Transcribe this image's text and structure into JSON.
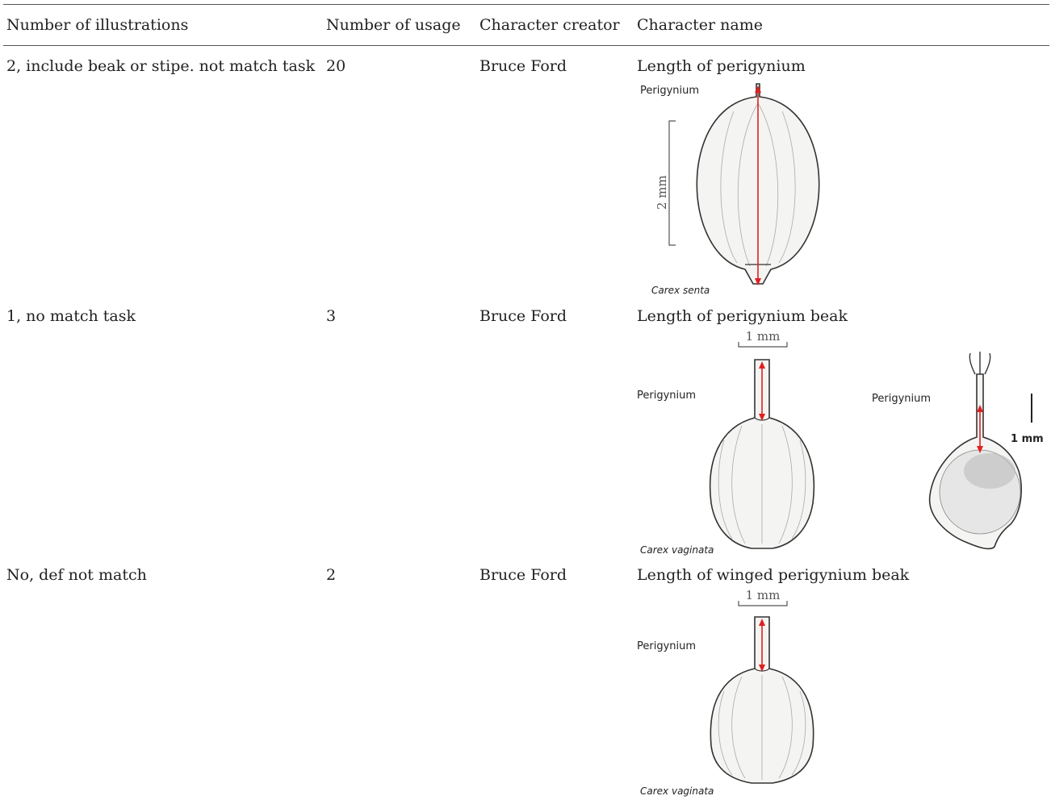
{
  "table": {
    "headers": [
      "Number of illustrations",
      "Number of usage",
      "Character creator",
      "Character name"
    ],
    "rows": [
      {
        "illustrations": "2, include beak or stipe. not match task",
        "usage": "20",
        "creator": "Bruce Ford",
        "name": "Length of perigynium",
        "figure": {
          "label": "Perigynium",
          "scale": "2 mm",
          "species": "Carex senta"
        }
      },
      {
        "illustrations": "1, no match task",
        "usage": "3",
        "creator": "Bruce Ford",
        "name": "Length of perigynium beak",
        "figure": {
          "label": "Perigynium",
          "scale": "1 mm",
          "species": "Carex vaginata"
        },
        "figure2": {
          "label": "Perigynium",
          "scale": "1 mm"
        }
      },
      {
        "illustrations": "No, def not match",
        "usage": "2",
        "creator": "Bruce Ford",
        "name": "Length of winged perigynium beak",
        "figure": {
          "label": "Perigynium",
          "scale": "1 mm",
          "species": "Carex vaginata"
        }
      }
    ]
  },
  "colors": {
    "arrow": "#e02020",
    "rule": "#555555",
    "text": "#222222"
  },
  "icons": [
    "measurement-arrow-icon",
    "scale-bar-icon"
  ]
}
